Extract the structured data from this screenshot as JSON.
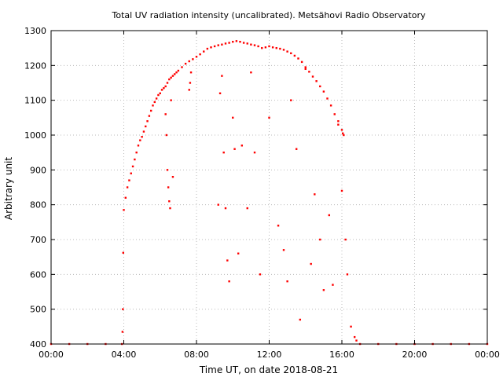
{
  "chart_data": {
    "type": "scatter",
    "title": "Total UV radiation intensity (uncalibrated). Metsähovi Radio Observatory",
    "xlabel": "Time UT, on date 2018-08-21",
    "ylabel": "Arbitrary unit",
    "x_unit": "hours UT",
    "xlim": [
      0,
      24
    ],
    "ylim": [
      400,
      1300
    ],
    "x_ticks": [
      {
        "value": 0,
        "label": "00:00"
      },
      {
        "value": 4,
        "label": "04:00"
      },
      {
        "value": 8,
        "label": "08:00"
      },
      {
        "value": 12,
        "label": "12:00"
      },
      {
        "value": 16,
        "label": "16:00"
      },
      {
        "value": 20,
        "label": "20:00"
      },
      {
        "value": 24,
        "label": "00:00"
      }
    ],
    "y_ticks": [
      400,
      500,
      600,
      700,
      800,
      900,
      1000,
      1100,
      1200,
      1300
    ],
    "grid": true,
    "marker_color": "#ff0000",
    "series": [
      {
        "x": [
          0.0,
          1.0,
          2.0,
          3.0,
          3.9,
          3.93,
          3.95,
          3.97,
          4.0,
          4.1,
          4.2,
          4.3,
          4.4,
          4.5,
          4.6,
          4.7,
          4.8,
          4.9,
          5.0,
          5.1,
          5.2,
          5.3,
          5.4,
          5.5,
          5.6,
          5.7,
          5.8,
          5.9,
          6.0,
          6.1,
          6.2,
          6.3,
          6.4,
          6.5,
          6.6,
          6.7,
          6.8,
          6.9,
          7.0,
          7.2,
          7.4,
          7.6,
          7.8,
          8.0,
          8.2,
          8.4,
          8.6,
          8.8,
          9.0,
          9.2,
          9.4,
          9.6,
          9.8,
          10.0,
          10.2,
          10.4,
          10.6,
          10.8,
          11.0,
          11.2,
          11.4,
          11.6,
          11.8,
          12.0,
          12.2,
          12.4,
          12.6,
          12.8,
          13.0,
          13.2,
          13.4,
          13.6,
          13.8,
          14.0,
          14.2,
          14.4,
          14.6,
          14.8,
          15.0,
          15.2,
          15.4,
          15.6,
          15.8,
          16.0,
          16.05,
          16.1,
          16.2,
          16.3,
          16.5,
          16.7,
          16.8,
          17.0,
          18.0,
          19.0,
          20.0,
          21.0,
          22.0,
          23.0,
          24.0
        ],
        "y": [
          400,
          400,
          400,
          400,
          400,
          435,
          500,
          662,
          785,
          820,
          850,
          870,
          890,
          910,
          930,
          950,
          970,
          985,
          995,
          1010,
          1025,
          1040,
          1055,
          1070,
          1085,
          1095,
          1105,
          1115,
          1120,
          1130,
          1135,
          1140,
          1150,
          1160,
          1165,
          1170,
          1175,
          1180,
          1185,
          1195,
          1205,
          1212,
          1218,
          1225,
          1232,
          1240,
          1248,
          1252,
          1255,
          1258,
          1260,
          1263,
          1265,
          1268,
          1270,
          1268,
          1265,
          1263,
          1260,
          1258,
          1255,
          1250,
          1252,
          1255,
          1252,
          1250,
          1248,
          1245,
          1240,
          1235,
          1228,
          1220,
          1210,
          1195,
          1182,
          1168,
          1155,
          1140,
          1125,
          1105,
          1085,
          1060,
          1040,
          1015,
          1005,
          1000,
          700,
          600,
          450,
          420,
          410,
          400,
          400,
          400,
          400,
          400,
          400,
          400,
          400
        ]
      },
      {
        "x": [
          6.3,
          6.35,
          6.4,
          6.45,
          6.5,
          6.55,
          6.6,
          6.7,
          7.6,
          7.65,
          7.7,
          9.2,
          9.3,
          9.4,
          9.5,
          9.6,
          9.7,
          9.8,
          10.0,
          10.1,
          10.3,
          10.5,
          10.8,
          11.0,
          11.2,
          11.5,
          12.0,
          12.5,
          12.8,
          13.0,
          13.2,
          13.5,
          13.7,
          14.0,
          14.3,
          14.5,
          14.8,
          15.0,
          15.3,
          15.5,
          15.8,
          16.0
        ],
        "y": [
          1060,
          1000,
          900,
          850,
          810,
          790,
          1100,
          880,
          1130,
          1150,
          1180,
          800,
          1120,
          1170,
          950,
          790,
          640,
          580,
          1050,
          960,
          660,
          970,
          790,
          1180,
          950,
          600,
          1050,
          740,
          670,
          580,
          1100,
          960,
          470,
          1190,
          630,
          830,
          700,
          555,
          770,
          570,
          1030,
          840
        ]
      }
    ]
  }
}
